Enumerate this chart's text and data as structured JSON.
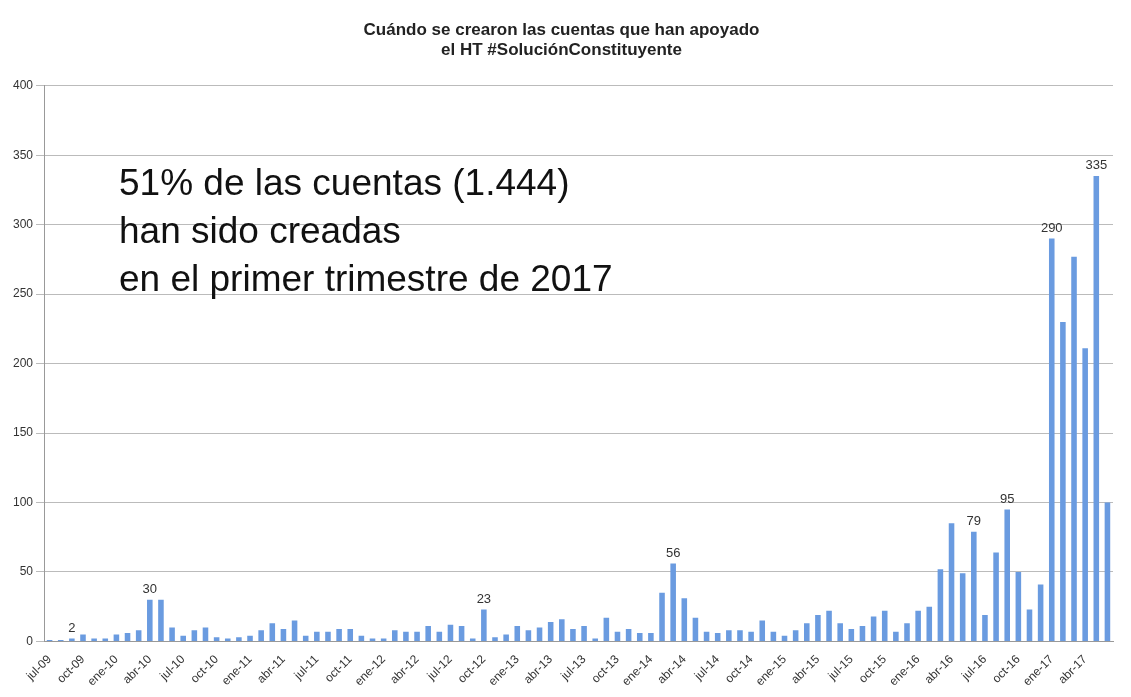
{
  "chart_data": {
    "type": "bar",
    "title": "Cuándo se crearon las cuentas que han apoyado\nel HT #SoluciónConstituyente",
    "categories": [
      "jul-09",
      null,
      null,
      "oct-09",
      null,
      null,
      "ene-10",
      null,
      null,
      "abr-10",
      null,
      null,
      "jul-10",
      null,
      null,
      "oct-10",
      null,
      null,
      "ene-11",
      null,
      null,
      "abr-11",
      null,
      null,
      "jul-11",
      null,
      null,
      "oct-11",
      null,
      null,
      "ene-12",
      null,
      null,
      "abr-12",
      null,
      null,
      "jul-12",
      null,
      null,
      "oct-12",
      null,
      null,
      "ene-13",
      null,
      null,
      "abr-13",
      null,
      null,
      "jul-13",
      null,
      null,
      "oct-13",
      null,
      null,
      "ene-14",
      null,
      null,
      "abr-14",
      null,
      null,
      "jul-14",
      null,
      null,
      "oct-14",
      null,
      null,
      "ene-15",
      null,
      null,
      "abr-15",
      null,
      null,
      "jul-15",
      null,
      null,
      "oct-15",
      null,
      null,
      "ene-16",
      null,
      null,
      "abr-16",
      null,
      null,
      "jul-16",
      null,
      null,
      "oct-16",
      null,
      null,
      "ene-17",
      null,
      null,
      "abr-17",
      null,
      null
    ],
    "values": [
      1,
      1,
      2,
      5,
      2,
      2,
      5,
      6,
      8,
      30,
      30,
      10,
      4,
      8,
      10,
      3,
      2,
      3,
      4,
      8,
      13,
      9,
      15,
      4,
      7,
      7,
      9,
      9,
      4,
      2,
      2,
      8,
      7,
      7,
      11,
      7,
      12,
      11,
      2,
      23,
      3,
      5,
      11,
      8,
      10,
      14,
      16,
      9,
      11,
      2,
      17,
      7,
      9,
      6,
      6,
      35,
      56,
      31,
      17,
      7,
      6,
      8,
      8,
      7,
      15,
      7,
      4,
      8,
      13,
      19,
      22,
      13,
      9,
      11,
      18,
      22,
      7,
      13,
      22,
      25,
      52,
      85,
      49,
      79,
      19,
      64,
      95,
      50,
      23,
      41,
      290,
      230,
      277,
      211,
      335,
      100
    ],
    "value_labels": [
      null,
      null,
      "2",
      null,
      null,
      null,
      null,
      null,
      null,
      "30",
      null,
      null,
      null,
      null,
      null,
      null,
      null,
      null,
      null,
      null,
      null,
      null,
      null,
      null,
      null,
      null,
      null,
      null,
      null,
      null,
      null,
      null,
      null,
      null,
      null,
      null,
      null,
      null,
      null,
      "23",
      null,
      null,
      null,
      null,
      null,
      null,
      null,
      null,
      null,
      null,
      null,
      null,
      null,
      null,
      null,
      null,
      "56",
      null,
      null,
      null,
      null,
      null,
      null,
      null,
      null,
      null,
      null,
      null,
      null,
      null,
      null,
      null,
      null,
      null,
      null,
      null,
      null,
      null,
      null,
      null,
      null,
      null,
      null,
      "79",
      null,
      null,
      "95",
      null,
      null,
      null,
      "290",
      null,
      null,
      null,
      "335",
      null
    ],
    "color": "#6a9be0",
    "ylim": [
      0,
      400
    ],
    "yticks": [
      0,
      50,
      100,
      150,
      200,
      250,
      300,
      350,
      400
    ],
    "grid": "y",
    "annotations": [
      "51% de las cuentas (1.444)\nhan sido creadas\nen el primer trimestre de 2017"
    ]
  }
}
